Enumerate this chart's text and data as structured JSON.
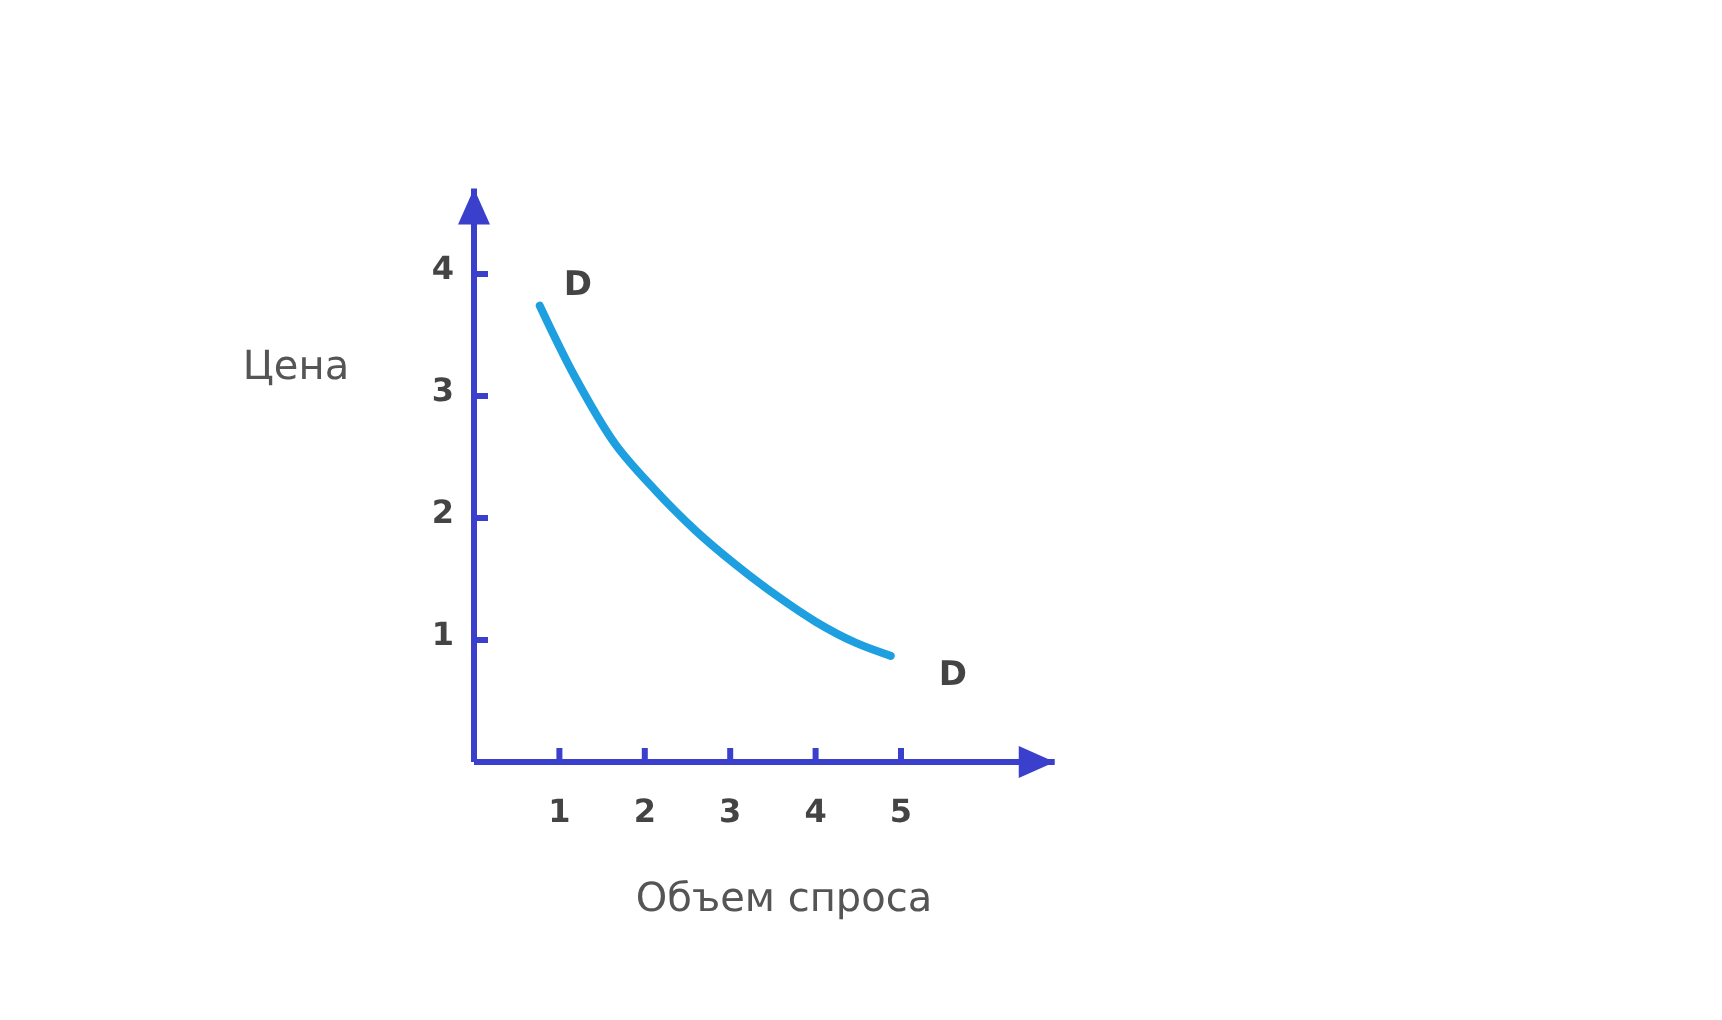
{
  "chart_data": {
    "type": "line",
    "xlabel": "Объем спроса",
    "ylabel": "Цена",
    "xlim": [
      0,
      6.8
    ],
    "ylim": [
      0,
      4.7
    ],
    "xticks": [
      1,
      2,
      3,
      4,
      5
    ],
    "yticks": [
      1,
      2,
      3,
      4
    ],
    "grid": false,
    "line_style": "solid",
    "x": [
      0.77,
      1.18,
      1.65,
      2.12,
      2.59,
      3.06,
      3.53,
      4.0,
      4.46,
      4.88
    ],
    "series": [
      {
        "color": "#1e9fe0",
        "values": [
          3.74,
          3.16,
          2.61,
          2.23,
          1.9,
          1.62,
          1.37,
          1.15,
          0.98,
          0.87
        ]
      }
    ],
    "annotations": [
      {
        "text": "D",
        "x": 0.77,
        "y": 3.74
      },
      {
        "text": "D",
        "x": 4.88,
        "y": 0.87
      }
    ]
  }
}
